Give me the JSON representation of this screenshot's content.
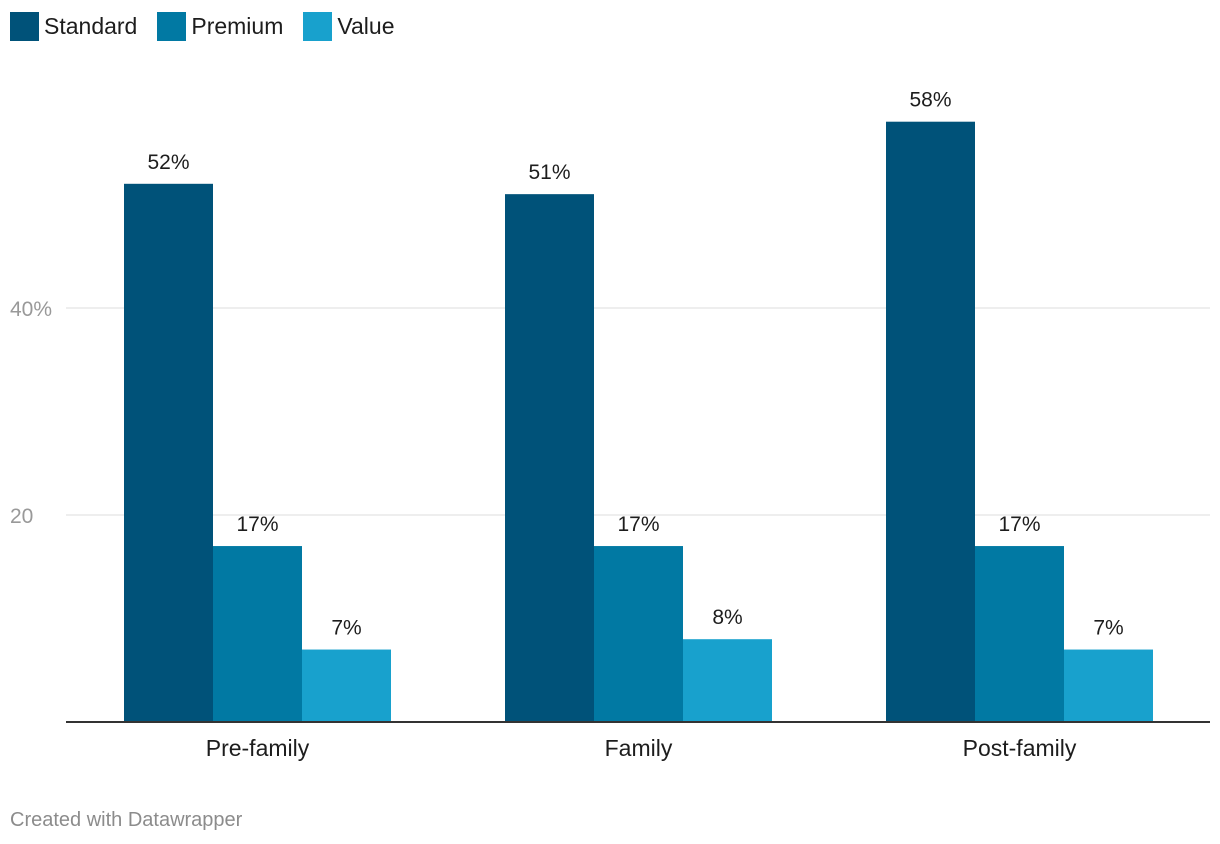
{
  "chart_data": {
    "type": "bar",
    "categories": [
      "Pre-family",
      "Family",
      "Post-family"
    ],
    "series": [
      {
        "name": "Standard",
        "color": "#005279",
        "values": [
          52,
          51,
          58
        ],
        "labels": [
          "52%",
          "51%",
          "58%"
        ]
      },
      {
        "name": "Premium",
        "color": "#0179a3",
        "values": [
          17,
          17,
          17
        ],
        "labels": [
          "17%",
          "17%",
          "17%"
        ]
      },
      {
        "name": "Value",
        "color": "#18a1cd",
        "values": [
          7,
          8,
          7
        ],
        "labels": [
          "7%",
          "8%",
          "7%"
        ]
      }
    ],
    "yticks": [
      {
        "value": 20,
        "label": "20"
      },
      {
        "value": 40,
        "label": "40%"
      }
    ],
    "ylim": [
      0,
      60
    ],
    "grid": true,
    "legend": "top-left"
  },
  "footer": {
    "credit": "Created with Datawrapper"
  }
}
